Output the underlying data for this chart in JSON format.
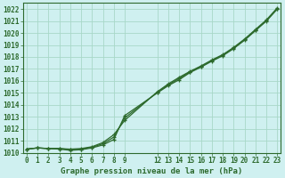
{
  "title": "Graphe pression niveau de la mer (hPa)",
  "bg_color": "#cff0f0",
  "grid_color": "#a8d8c8",
  "line_color": "#2d6a2d",
  "marker_color": "#2d6a2d",
  "ylim": [
    1010,
    1022.5
  ],
  "yticks": [
    1010,
    1011,
    1012,
    1013,
    1014,
    1015,
    1016,
    1017,
    1018,
    1019,
    1020,
    1021,
    1022
  ],
  "xtick_positions": [
    0,
    1,
    2,
    3,
    4,
    5,
    6,
    7,
    8,
    9,
    12,
    13,
    14,
    15,
    16,
    17,
    18,
    19,
    20,
    21,
    22,
    23
  ],
  "xtick_labels": [
    "0",
    "1",
    "2",
    "3",
    "4",
    "5",
    "6",
    "7",
    "8",
    "9",
    "12",
    "13",
    "14",
    "15",
    "16",
    "17",
    "18",
    "19",
    "20",
    "21",
    "22",
    "23"
  ],
  "xlim": [
    -0.3,
    23.3
  ],
  "series1_x": [
    0,
    1,
    2,
    3,
    4,
    5,
    6,
    7,
    8,
    9,
    12,
    13,
    14,
    15,
    16,
    17,
    18,
    19,
    20,
    21,
    22,
    23
  ],
  "series1_y": [
    1010.3,
    1010.4,
    1010.35,
    1010.35,
    1010.3,
    1010.35,
    1010.5,
    1010.85,
    1011.5,
    1012.7,
    1015.1,
    1015.75,
    1016.3,
    1016.8,
    1017.25,
    1017.75,
    1018.2,
    1018.8,
    1019.5,
    1020.3,
    1021.1,
    1022.1
  ],
  "series2_x": [
    0,
    1,
    2,
    3,
    4,
    5,
    6,
    7,
    8,
    9,
    12,
    13,
    14,
    15,
    16,
    17,
    18,
    19,
    20,
    21,
    22,
    23
  ],
  "series2_y": [
    1010.3,
    1010.4,
    1010.35,
    1010.3,
    1010.2,
    1010.25,
    1010.4,
    1010.65,
    1011.1,
    1013.1,
    1015.0,
    1015.6,
    1016.1,
    1016.7,
    1017.15,
    1017.65,
    1018.1,
    1018.7,
    1019.4,
    1020.2,
    1021.0,
    1022.0
  ],
  "series3_x": [
    0,
    1,
    2,
    3,
    4,
    5,
    6,
    7,
    8,
    9,
    12,
    13,
    14,
    15,
    16,
    17,
    18,
    19,
    20,
    21,
    22,
    23
  ],
  "series3_y": [
    1010.3,
    1010.4,
    1010.35,
    1010.35,
    1010.25,
    1010.3,
    1010.45,
    1010.75,
    1011.3,
    1012.9,
    1015.05,
    1015.68,
    1016.2,
    1016.75,
    1017.2,
    1017.7,
    1018.15,
    1018.75,
    1019.45,
    1020.25,
    1021.05,
    1022.05
  ]
}
